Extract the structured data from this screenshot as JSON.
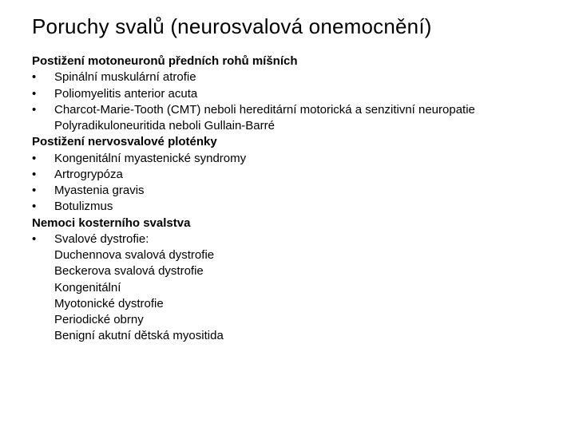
{
  "title": "Poruchy svalů (neurosvalová onemocnění)",
  "bullet_glyph": "•",
  "sections": {
    "s1_heading": "Postižení motoneuronů předních rohů míšních",
    "s1_items": {
      "i1": "Spinální muskulární atrofie",
      "i2": "Poliomyelitis anterior acuta",
      "i3": "Charcot-Marie-Tooth (CMT) neboli hereditární motorická a senzitivní neuropatie Polyradikuloneuritida neboli Gullain-Barré"
    },
    "s2_heading": "Postižení nervosvalové ploténky",
    "s2_items": {
      "i1": "Kongenitální myastenické syndromy",
      "i2": "Artrogrypóza",
      "i3": "Myastenia gravis",
      "i4": "Botulizmus"
    },
    "s3_heading": "Nemoci kosterního svalstva",
    "s3_items": {
      "i1": "Svalové dystrofie:"
    },
    "s3_sub": {
      "l1": "Duchennova svalová dystrofie",
      "l2": "Beckerova svalová dystrofie",
      "l3": "Kongenitální",
      "l4": "Myotonické dystrofie",
      "l5": "Periodické obrny",
      "l6": "Benigní akutní dětská myositida"
    }
  }
}
